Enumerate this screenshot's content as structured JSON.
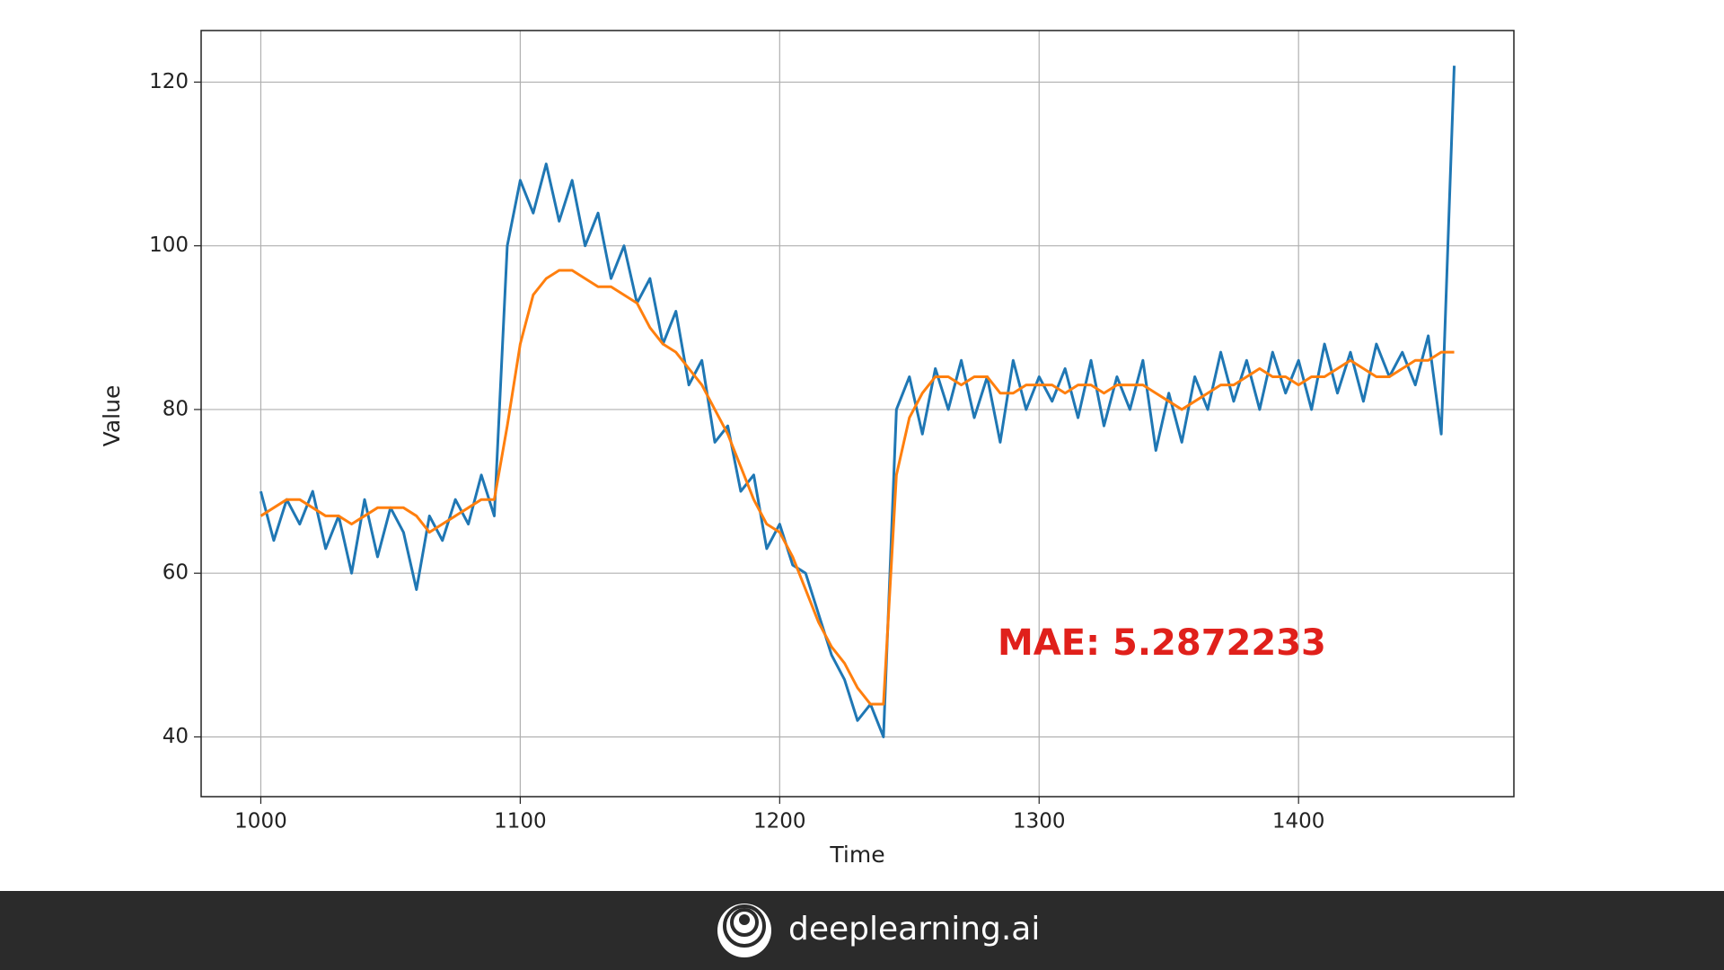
{
  "chart_data": {
    "type": "line",
    "xlabel": "Time",
    "ylabel": "Value",
    "annotation": "MAE: 5.2872233",
    "x": [
      1000,
      1005,
      1010,
      1015,
      1020,
      1025,
      1030,
      1035,
      1040,
      1045,
      1050,
      1055,
      1060,
      1065,
      1070,
      1075,
      1080,
      1085,
      1090,
      1095,
      1100,
      1105,
      1110,
      1115,
      1120,
      1125,
      1130,
      1135,
      1140,
      1145,
      1150,
      1155,
      1160,
      1165,
      1170,
      1175,
      1180,
      1185,
      1190,
      1195,
      1200,
      1205,
      1210,
      1215,
      1220,
      1225,
      1230,
      1235,
      1240,
      1245,
      1250,
      1255,
      1260,
      1265,
      1270,
      1275,
      1280,
      1285,
      1290,
      1295,
      1300,
      1305,
      1310,
      1315,
      1320,
      1325,
      1330,
      1335,
      1340,
      1345,
      1350,
      1355,
      1360,
      1365,
      1370,
      1375,
      1380,
      1385,
      1390,
      1395,
      1400,
      1405,
      1410,
      1415,
      1420,
      1425,
      1430,
      1435,
      1440,
      1445,
      1450,
      1455,
      1460
    ],
    "series": [
      {
        "color": "#1f77b4",
        "values": [
          70,
          64,
          69,
          66,
          70,
          63,
          67,
          60,
          69,
          62,
          68,
          65,
          58,
          67,
          64,
          69,
          66,
          72,
          67,
          100,
          108,
          104,
          110,
          103,
          108,
          100,
          104,
          96,
          100,
          93,
          96,
          88,
          92,
          83,
          86,
          76,
          78,
          70,
          72,
          63,
          66,
          61,
          60,
          55,
          50,
          47,
          42,
          44,
          40,
          80,
          84,
          77,
          85,
          80,
          86,
          79,
          84,
          76,
          86,
          80,
          84,
          81,
          85,
          79,
          86,
          78,
          84,
          80,
          86,
          75,
          82,
          76,
          84,
          80,
          87,
          81,
          86,
          80,
          87,
          82,
          86,
          80,
          88,
          82,
          87,
          81,
          88,
          84,
          87,
          83,
          89,
          77,
          122
        ]
      },
      {
        "color": "#ff7f0e",
        "values": [
          67,
          68,
          69,
          69,
          68,
          67,
          67,
          66,
          67,
          68,
          68,
          68,
          67,
          65,
          66,
          67,
          68,
          69,
          69,
          78,
          88,
          94,
          96,
          97,
          97,
          96,
          95,
          95,
          94,
          93,
          90,
          88,
          87,
          85,
          83,
          80,
          77,
          73,
          69,
          66,
          65,
          62,
          58,
          54,
          51,
          49,
          46,
          44,
          44,
          72,
          79,
          82,
          84,
          84,
          83,
          84,
          84,
          82,
          82,
          83,
          83,
          83,
          82,
          83,
          83,
          82,
          83,
          83,
          83,
          82,
          81,
          80,
          81,
          82,
          83,
          83,
          84,
          85,
          84,
          84,
          83,
          84,
          84,
          85,
          86,
          85,
          84,
          84,
          85,
          86,
          86,
          87,
          87
        ]
      }
    ],
    "xlim": [
      977,
      1483
    ],
    "ylim": [
      32.7,
      126.3
    ],
    "xticks": [
      1000,
      1100,
      1200,
      1300,
      1400
    ],
    "yticks": [
      40,
      60,
      80,
      100,
      120
    ],
    "grid": true
  },
  "footer": {
    "brand": "deeplearning.ai"
  }
}
